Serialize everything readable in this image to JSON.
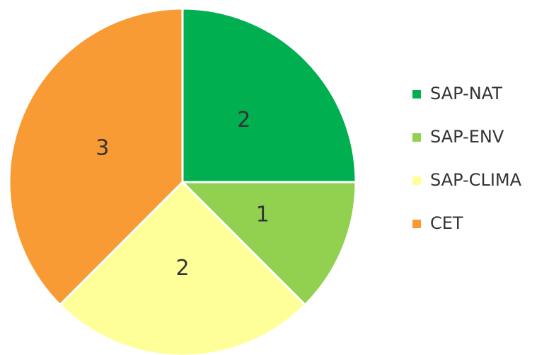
{
  "chart_data": {
    "type": "pie",
    "categories": [
      "SAP-NAT",
      "SAP-ENV",
      "SAP-CLIMA",
      "CET"
    ],
    "values": [
      2,
      1,
      2,
      3
    ],
    "colors": [
      "#00b050",
      "#92d050",
      "#ffff99",
      "#f99b35"
    ],
    "legend": "right"
  }
}
